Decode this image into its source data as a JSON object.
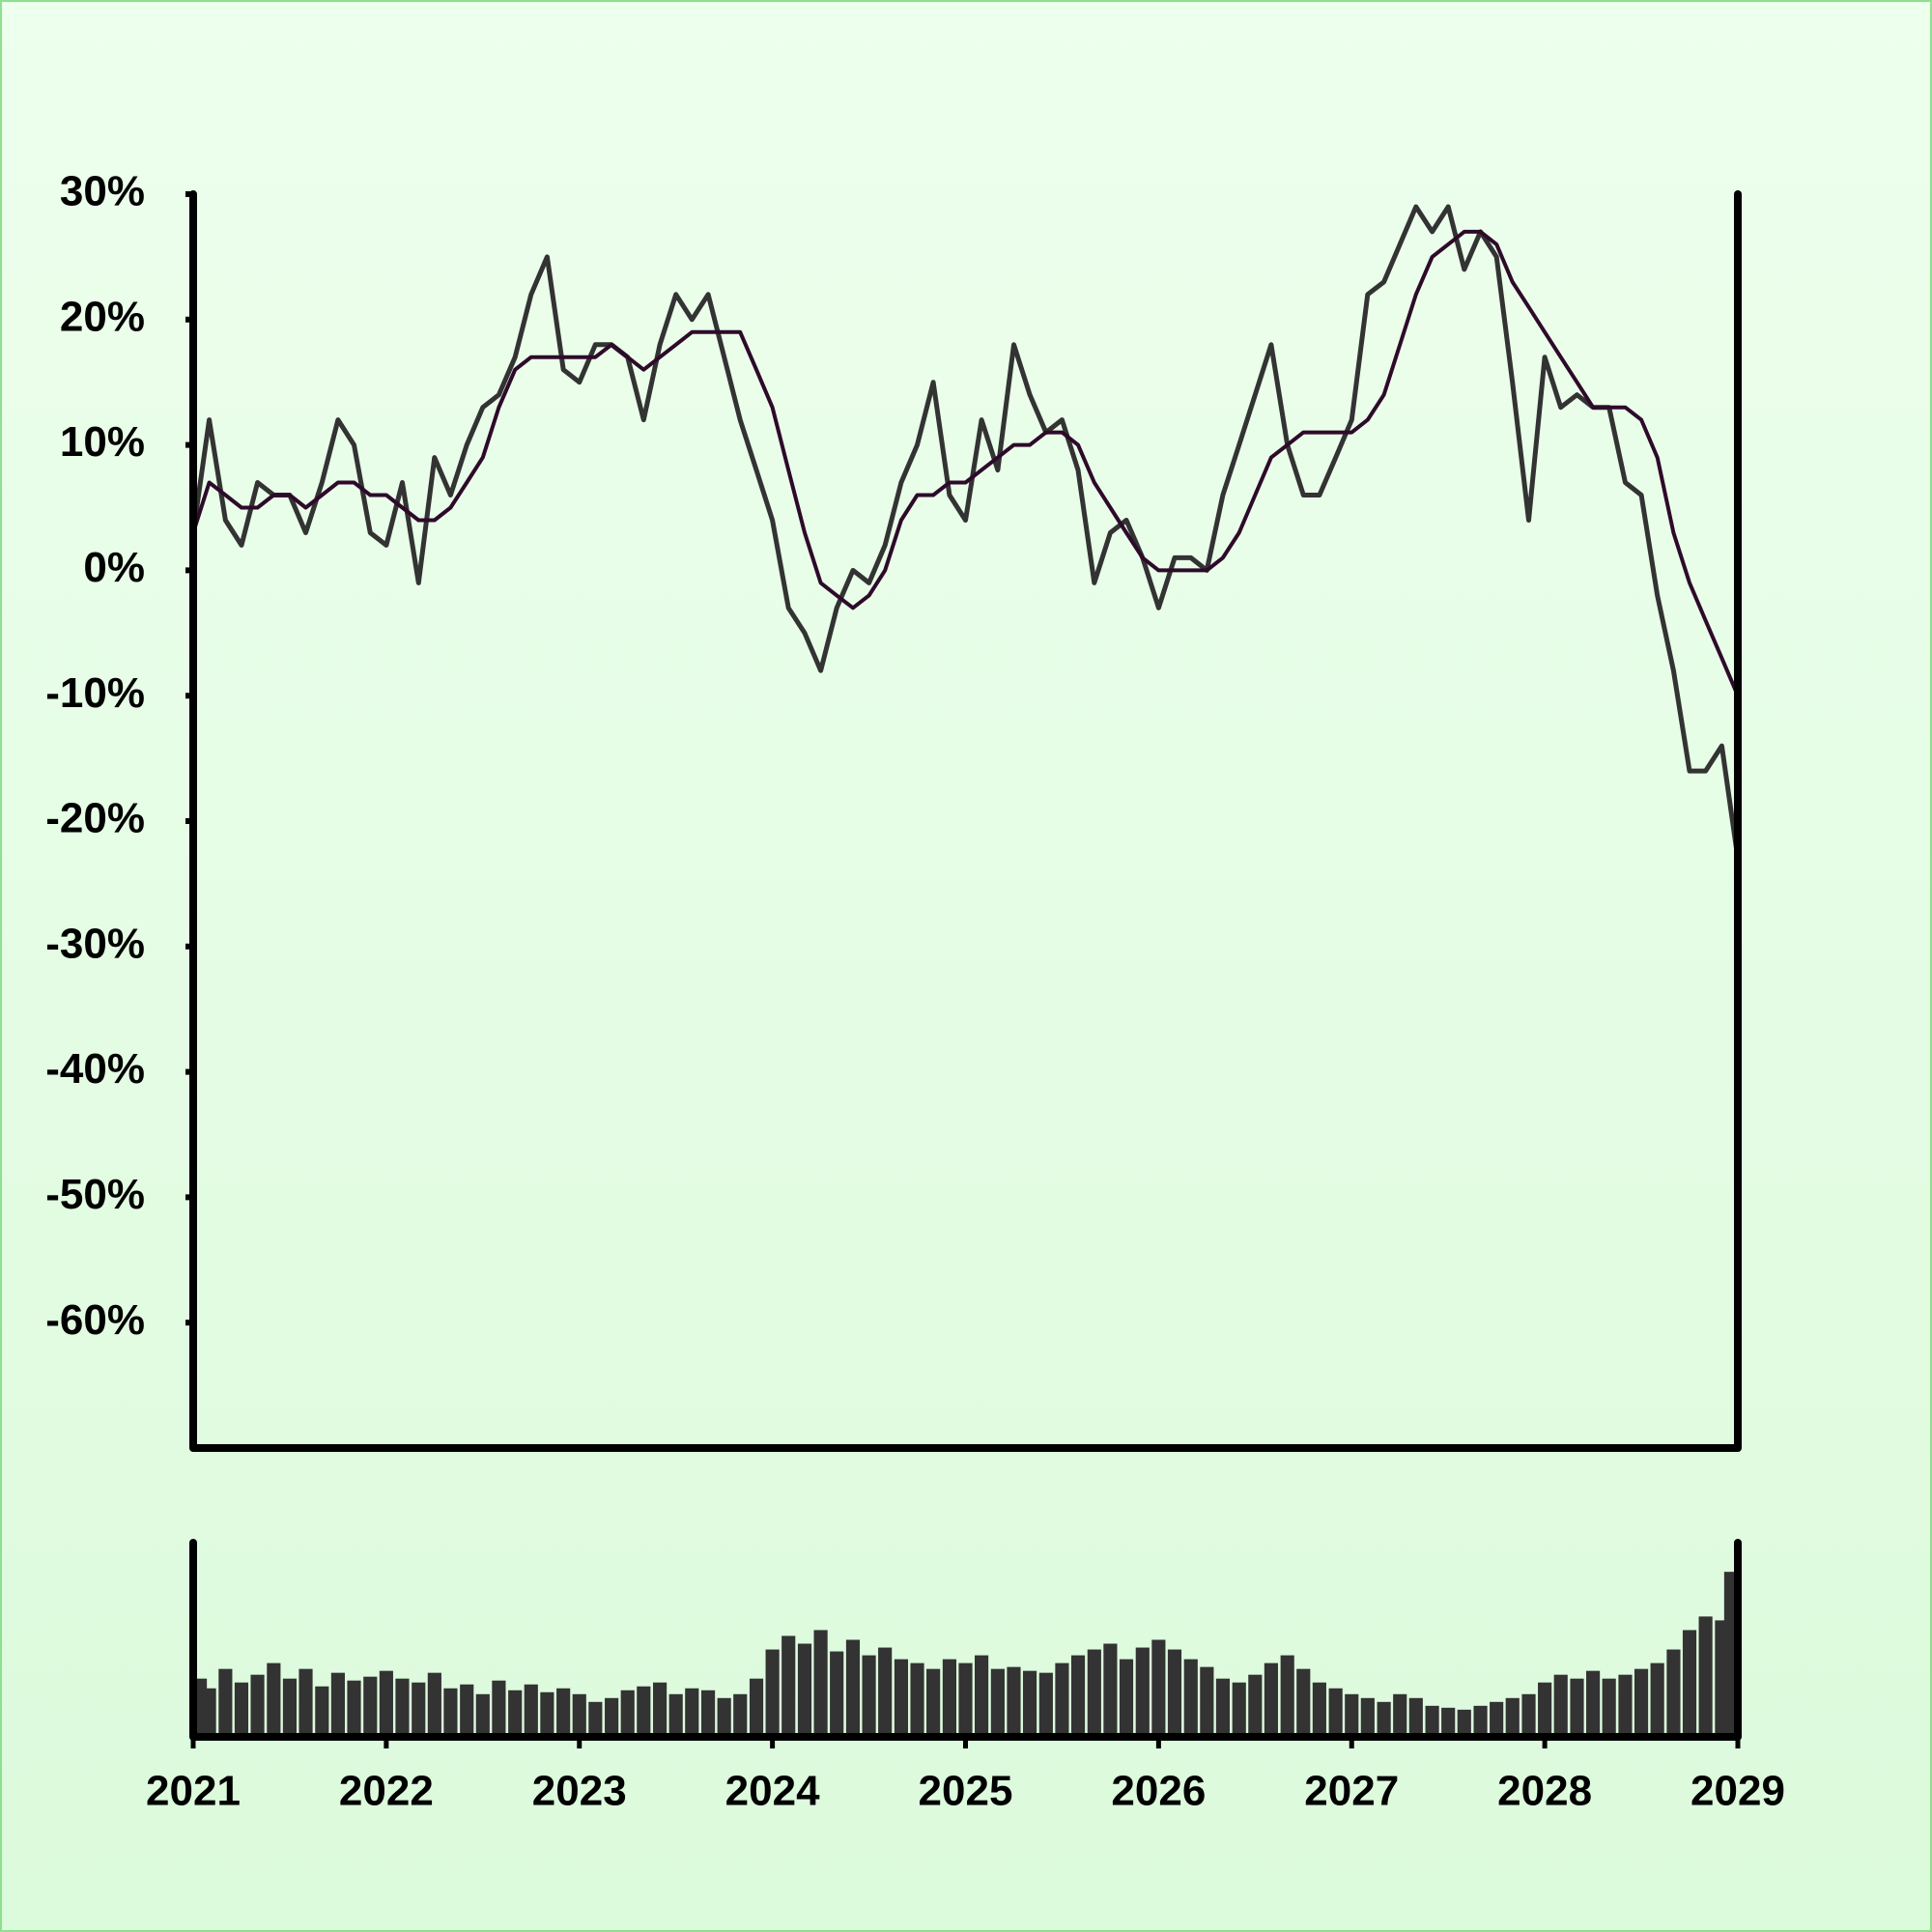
{
  "chart_data": [
    {
      "type": "line",
      "x": [
        2021,
        2021.083,
        2021.167,
        2021.25,
        2021.333,
        2021.417,
        2021.5,
        2021.583,
        2021.667,
        2021.75,
        2021.833,
        2021.917,
        2022,
        2022.083,
        2022.167,
        2022.25,
        2022.333,
        2022.417,
        2022.5,
        2022.583,
        2022.667,
        2022.75,
        2022.833,
        2022.917,
        2023,
        2023.083,
        2023.167,
        2023.25,
        2023.333,
        2023.417,
        2023.5,
        2023.583,
        2023.667,
        2023.75,
        2023.833,
        2023.917,
        2024,
        2024.083,
        2024.167,
        2024.25,
        2024.333,
        2024.417,
        2024.5,
        2024.583,
        2024.667,
        2024.75,
        2024.833,
        2024.917,
        2025,
        2025.083,
        2025.167,
        2025.25,
        2025.333,
        2025.417,
        2025.5,
        2025.583,
        2025.667,
        2025.75,
        2025.833,
        2025.917,
        2026,
        2026.083,
        2026.167,
        2026.25,
        2026.333,
        2026.417,
        2026.5,
        2026.583,
        2026.667,
        2026.75,
        2026.833,
        2026.917,
        2027,
        2027.083,
        2027.167,
        2027.25,
        2027.333,
        2027.417,
        2027.5,
        2027.583,
        2027.667,
        2027.75,
        2027.833,
        2027.917,
        2028,
        2028.083,
        2028.167,
        2028.25,
        2028.333,
        2028.417,
        2028.5,
        2028.583,
        2028.667,
        2028.75,
        2028.833,
        2028.917,
        2029
      ],
      "series": [
        {
          "color": "#333333",
          "values": [
            3,
            12,
            4,
            2,
            7,
            6,
            6,
            3,
            7,
            12,
            10,
            3,
            2,
            7,
            -1,
            9,
            6,
            10,
            13,
            14,
            17,
            22,
            25,
            16,
            15,
            18,
            18,
            17,
            12,
            18,
            22,
            20,
            22,
            17,
            12,
            8,
            4,
            -3,
            -5,
            -8,
            -3,
            0,
            -1,
            2,
            7,
            10,
            15,
            6,
            4,
            12,
            8,
            18,
            14,
            11,
            12,
            8,
            -1,
            3,
            4,
            1,
            -3,
            1,
            1,
            0,
            6,
            10,
            14,
            18,
            10,
            6,
            6,
            9,
            12,
            22,
            23,
            26,
            29,
            27,
            29,
            24,
            27,
            25,
            15,
            4,
            17,
            13,
            14,
            13,
            13,
            7,
            6,
            -2,
            -8,
            -16,
            -16,
            -14,
            -23
          ]
        },
        {
          "color": "#2e0a2a",
          "values": [
            3,
            7,
            6,
            5,
            5,
            6,
            6,
            5,
            6,
            7,
            7,
            6,
            6,
            5,
            4,
            4,
            5,
            7,
            9,
            13,
            16,
            17,
            17,
            17,
            17,
            17,
            18,
            17,
            16,
            17,
            18,
            19,
            19,
            19,
            19,
            16,
            13,
            8,
            3,
            -1,
            -2,
            -3,
            -2,
            0,
            4,
            6,
            6,
            7,
            7,
            8,
            9,
            10,
            10,
            11,
            11,
            10,
            7,
            5,
            3,
            1,
            0,
            0,
            0,
            0,
            1,
            3,
            6,
            9,
            10,
            11,
            11,
            11,
            11,
            12,
            14,
            18,
            22,
            25,
            26,
            27,
            27,
            26,
            23,
            21,
            19,
            17,
            15,
            13,
            13,
            13,
            12,
            9,
            3,
            -1,
            -4,
            -7,
            -10
          ]
        }
      ],
      "xlim": [
        2021,
        2029
      ],
      "ylim": [
        -70,
        30
      ],
      "yticks": [
        {
          "value": -60,
          "label": "-60%"
        },
        {
          "value": -50,
          "label": "-50%"
        },
        {
          "value": -40,
          "label": "-40%"
        },
        {
          "value": -30,
          "label": "-30%"
        },
        {
          "value": -20,
          "label": "-20%"
        },
        {
          "value": -10,
          "label": "-10%"
        },
        {
          "value": 0,
          "label": "0%"
        },
        {
          "value": 10,
          "label": "10%"
        },
        {
          "value": 20,
          "label": "20%"
        },
        {
          "value": 30,
          "label": "30%"
        }
      ]
    },
    {
      "type": "bar",
      "x": [
        2021,
        2021.083,
        2021.167,
        2021.25,
        2021.333,
        2021.417,
        2021.5,
        2021.583,
        2021.667,
        2021.75,
        2021.833,
        2021.917,
        2022,
        2022.083,
        2022.167,
        2022.25,
        2022.333,
        2022.417,
        2022.5,
        2022.583,
        2022.667,
        2022.75,
        2022.833,
        2022.917,
        2023,
        2023.083,
        2023.167,
        2023.25,
        2023.333,
        2023.417,
        2023.5,
        2023.583,
        2023.667,
        2023.75,
        2023.833,
        2023.917,
        2024,
        2024.083,
        2024.167,
        2024.25,
        2024.333,
        2024.417,
        2024.5,
        2024.583,
        2024.667,
        2024.75,
        2024.833,
        2024.917,
        2025,
        2025.083,
        2025.167,
        2025.25,
        2025.333,
        2025.417,
        2025.5,
        2025.583,
        2025.667,
        2025.75,
        2025.833,
        2025.917,
        2026,
        2026.083,
        2026.167,
        2026.25,
        2026.333,
        2026.417,
        2026.5,
        2026.583,
        2026.667,
        2026.75,
        2026.833,
        2026.917,
        2027,
        2027.083,
        2027.167,
        2027.25,
        2027.333,
        2027.417,
        2027.5,
        2027.583,
        2027.667,
        2027.75,
        2027.833,
        2027.917,
        2028,
        2028.083,
        2028.167,
        2028.25,
        2028.333,
        2028.417,
        2028.5,
        2028.583,
        2028.667,
        2028.75,
        2028.833,
        2028.917,
        2029
      ],
      "values": [
        30,
        25,
        35,
        28,
        32,
        38,
        30,
        35,
        26,
        33,
        29,
        31,
        34,
        30,
        28,
        33,
        25,
        27,
        22,
        29,
        24,
        27,
        23,
        25,
        22,
        18,
        20,
        24,
        26,
        28,
        22,
        25,
        24,
        20,
        22,
        30,
        45,
        52,
        48,
        55,
        44,
        50,
        42,
        46,
        40,
        38,
        35,
        40,
        38,
        42,
        35,
        36,
        34,
        33,
        38,
        42,
        45,
        48,
        40,
        46,
        50,
        45,
        40,
        36,
        30,
        28,
        32,
        38,
        42,
        35,
        28,
        25,
        22,
        20,
        18,
        22,
        20,
        16,
        15,
        14,
        16,
        18,
        20,
        22,
        28,
        32,
        30,
        34,
        30,
        32,
        35,
        38,
        45,
        55,
        62,
        60,
        85
      ],
      "color": "#333333",
      "xlim": [
        2021,
        2029
      ],
      "ylim": [
        0,
        100
      ],
      "xticks": [
        2021,
        2022,
        2023,
        2024,
        2025,
        2026,
        2027,
        2028,
        2029
      ]
    }
  ]
}
